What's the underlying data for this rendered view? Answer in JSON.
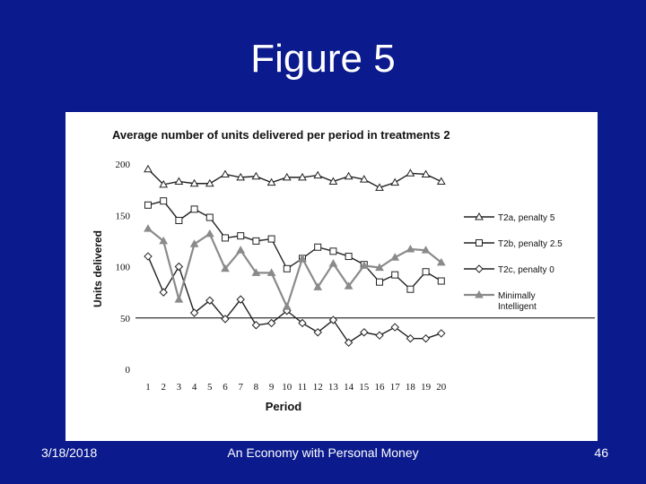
{
  "slide": {
    "title": "Figure 5",
    "footer_date": "3/18/2018",
    "footer_center": "An Economy with Personal Money",
    "page_number": "46"
  },
  "colors": {
    "background": "#0b1a8c",
    "panel": "#ffffff",
    "series_dark": "#222222",
    "series_gray": "#8a8a8a"
  },
  "chart_data": {
    "type": "line",
    "title": "Average number of units delivered per period in treatments 2",
    "xlabel": "Period",
    "ylabel": "Units delivered",
    "x": [
      1,
      2,
      3,
      4,
      5,
      6,
      7,
      8,
      9,
      10,
      11,
      12,
      13,
      14,
      15,
      16,
      17,
      18,
      19,
      20
    ],
    "ylim": [
      0,
      200
    ],
    "yticks": [
      0,
      50,
      100,
      150,
      200
    ],
    "reference_line": 50,
    "legend_position": "right",
    "series": [
      {
        "name": "T2a, penalty 5",
        "marker": "triangle-open",
        "color": "#222222",
        "values": [
          195,
          180,
          183,
          181,
          181,
          190,
          187,
          188,
          182,
          187,
          187,
          189,
          183,
          188,
          185,
          177,
          182,
          191,
          190,
          183
        ]
      },
      {
        "name": "T2b, penalty 2.5",
        "marker": "square-open",
        "color": "#222222",
        "values": [
          160,
          164,
          145,
          156,
          148,
          128,
          130,
          125,
          127,
          98,
          108,
          119,
          115,
          110,
          102,
          85,
          92,
          78,
          95,
          86
        ]
      },
      {
        "name": "T2c, penalty 0",
        "marker": "diamond-open",
        "color": "#222222",
        "values": [
          110,
          75,
          100,
          55,
          67,
          49,
          68,
          43,
          45,
          57,
          45,
          36,
          48,
          26,
          36,
          33,
          41,
          30,
          30,
          35
        ]
      },
      {
        "name": "Minimally Intelligent",
        "marker": "triangle-filled",
        "color": "#8a8a8a",
        "values": [
          137,
          125,
          68,
          122,
          132,
          98,
          116,
          94,
          94,
          61,
          108,
          80,
          103,
          81,
          101,
          99,
          109,
          117,
          116,
          104
        ]
      }
    ]
  }
}
